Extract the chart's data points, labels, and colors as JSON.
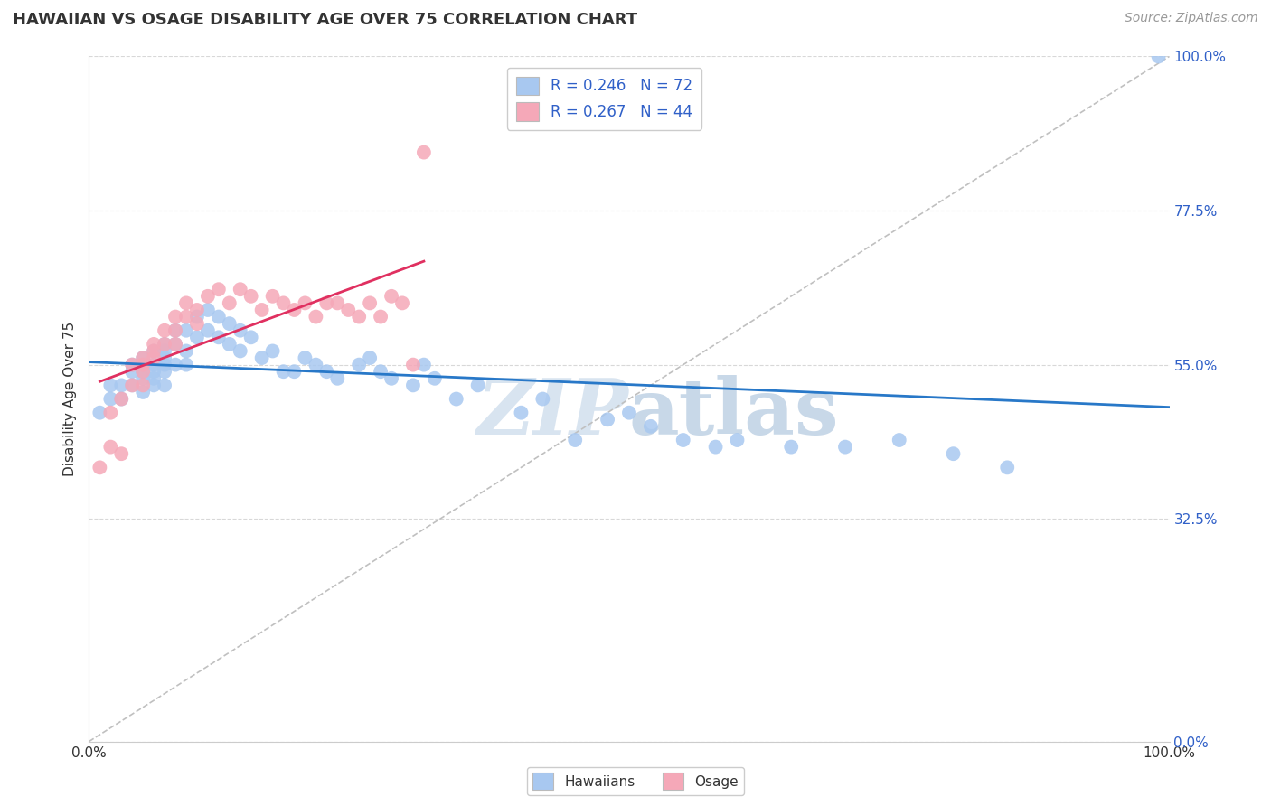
{
  "title": "HAWAIIAN VS OSAGE DISABILITY AGE OVER 75 CORRELATION CHART",
  "source_text": "Source: ZipAtlas.com",
  "ylabel": "Disability Age Over 75",
  "xlim": [
    0,
    1
  ],
  "ylim": [
    0,
    1
  ],
  "x_tick_labels": [
    "0.0%",
    "100.0%"
  ],
  "y_tick_labels": [
    "100.0%",
    "77.5%",
    "55.0%",
    "32.5%",
    "0.0%"
  ],
  "y_tick_positions": [
    1.0,
    0.775,
    0.55,
    0.325,
    0.0
  ],
  "hawaiians_R": 0.246,
  "hawaiians_N": 72,
  "osage_R": 0.267,
  "osage_N": 44,
  "hawaiians_color": "#a8c8f0",
  "osage_color": "#f5a8b8",
  "hawaiians_line_color": "#2878c8",
  "osage_line_color": "#e03060",
  "background_color": "#ffffff",
  "grid_color": "#d8d8d8",
  "legend_text_color": "#3060c8",
  "watermark_color": "#d8e4f0",
  "hawaiians_x": [
    0.01,
    0.02,
    0.02,
    0.03,
    0.03,
    0.04,
    0.04,
    0.04,
    0.05,
    0.05,
    0.05,
    0.05,
    0.06,
    0.06,
    0.06,
    0.06,
    0.06,
    0.07,
    0.07,
    0.07,
    0.07,
    0.07,
    0.07,
    0.08,
    0.08,
    0.08,
    0.09,
    0.09,
    0.09,
    0.1,
    0.1,
    0.11,
    0.11,
    0.12,
    0.12,
    0.13,
    0.13,
    0.14,
    0.14,
    0.15,
    0.16,
    0.17,
    0.18,
    0.19,
    0.2,
    0.21,
    0.22,
    0.23,
    0.25,
    0.26,
    0.27,
    0.28,
    0.3,
    0.31,
    0.32,
    0.34,
    0.36,
    0.4,
    0.42,
    0.45,
    0.48,
    0.5,
    0.52,
    0.55,
    0.58,
    0.6,
    0.65,
    0.7,
    0.75,
    0.8,
    0.85,
    0.99
  ],
  "hawaiians_y": [
    0.48,
    0.52,
    0.5,
    0.52,
    0.5,
    0.54,
    0.55,
    0.52,
    0.56,
    0.54,
    0.53,
    0.51,
    0.57,
    0.55,
    0.54,
    0.53,
    0.52,
    0.58,
    0.57,
    0.56,
    0.55,
    0.54,
    0.52,
    0.6,
    0.58,
    0.55,
    0.6,
    0.57,
    0.55,
    0.62,
    0.59,
    0.63,
    0.6,
    0.62,
    0.59,
    0.61,
    0.58,
    0.6,
    0.57,
    0.59,
    0.56,
    0.57,
    0.54,
    0.54,
    0.56,
    0.55,
    0.54,
    0.53,
    0.55,
    0.56,
    0.54,
    0.53,
    0.52,
    0.55,
    0.53,
    0.5,
    0.52,
    0.48,
    0.5,
    0.44,
    0.47,
    0.48,
    0.46,
    0.44,
    0.43,
    0.44,
    0.43,
    0.43,
    0.44,
    0.42,
    0.4,
    1.0
  ],
  "osage_x": [
    0.01,
    0.02,
    0.02,
    0.03,
    0.03,
    0.04,
    0.04,
    0.05,
    0.05,
    0.05,
    0.05,
    0.06,
    0.06,
    0.06,
    0.07,
    0.07,
    0.08,
    0.08,
    0.08,
    0.09,
    0.09,
    0.1,
    0.1,
    0.11,
    0.12,
    0.13,
    0.14,
    0.15,
    0.16,
    0.17,
    0.18,
    0.19,
    0.2,
    0.21,
    0.22,
    0.23,
    0.24,
    0.25,
    0.26,
    0.27,
    0.28,
    0.29,
    0.3,
    0.31
  ],
  "osage_y": [
    0.4,
    0.48,
    0.43,
    0.42,
    0.5,
    0.52,
    0.55,
    0.56,
    0.55,
    0.54,
    0.52,
    0.57,
    0.58,
    0.56,
    0.6,
    0.58,
    0.62,
    0.6,
    0.58,
    0.64,
    0.62,
    0.63,
    0.61,
    0.65,
    0.66,
    0.64,
    0.66,
    0.65,
    0.63,
    0.65,
    0.64,
    0.63,
    0.64,
    0.62,
    0.64,
    0.64,
    0.63,
    0.62,
    0.64,
    0.62,
    0.65,
    0.64,
    0.55,
    0.86
  ],
  "figsize": [
    14.06,
    8.92
  ],
  "dpi": 100
}
